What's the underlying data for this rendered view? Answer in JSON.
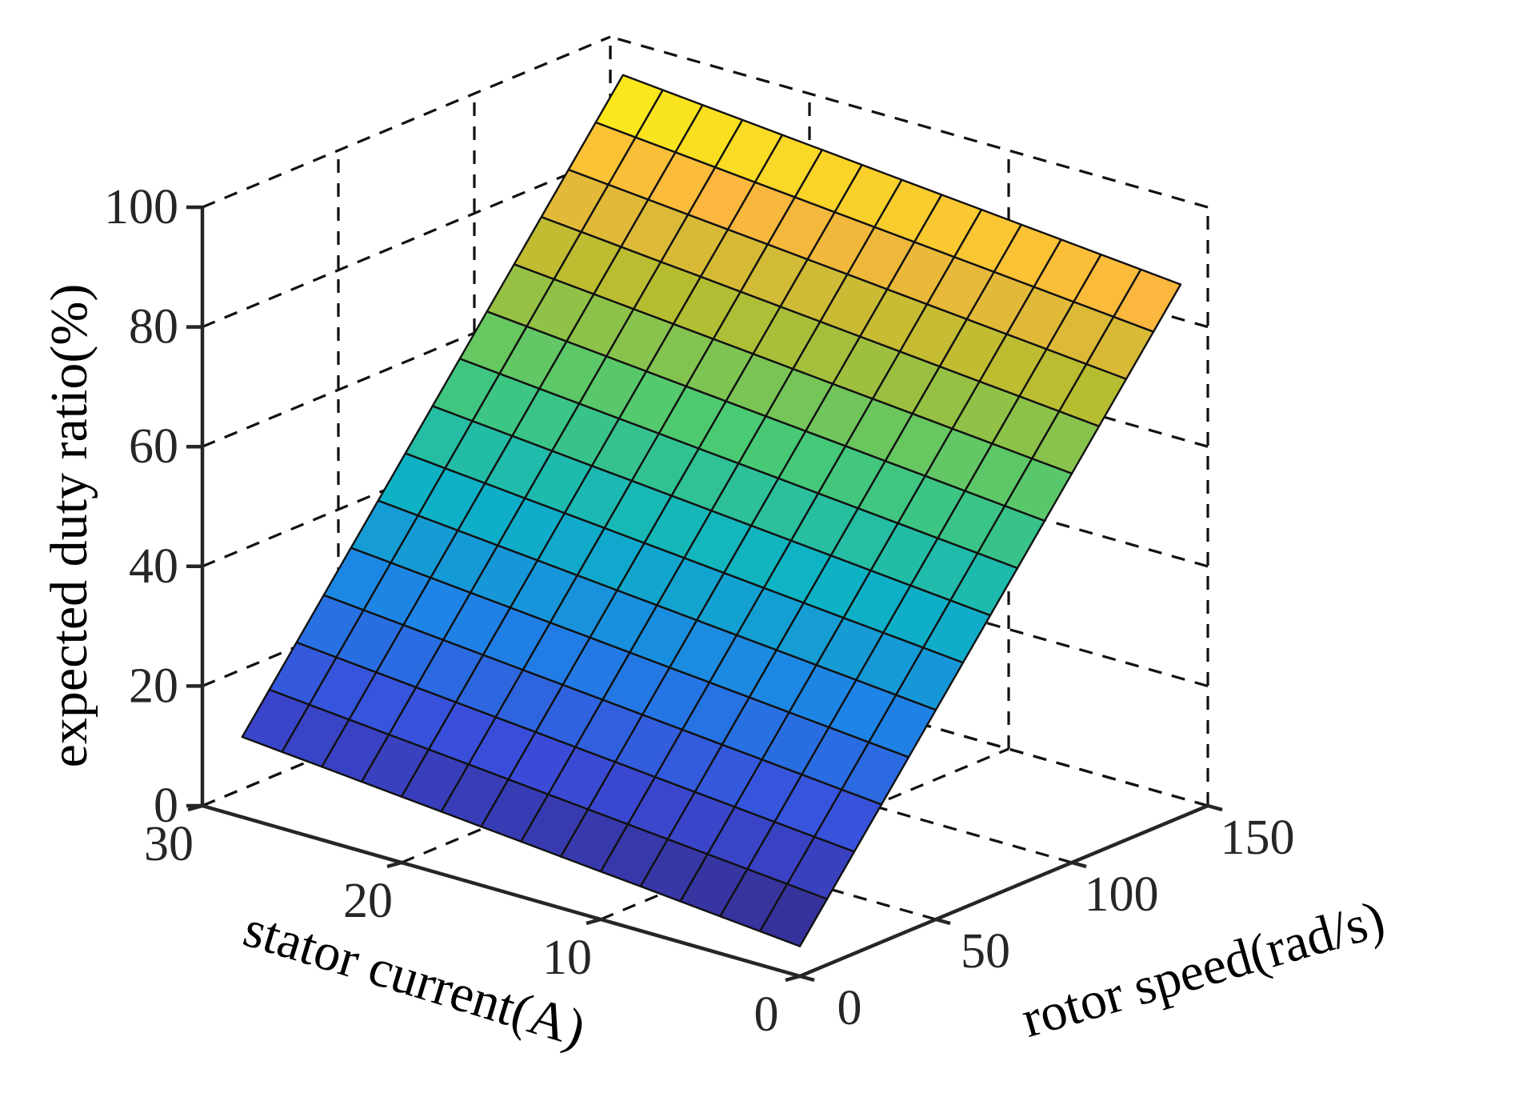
{
  "chart_data": {
    "type": "surface3d",
    "title": "",
    "xlabel": "rotor speed(rad/s)",
    "ylabel": "stator current(A)",
    "zlabel": "expected duty ratio(%)",
    "x_range": [
      0,
      150
    ],
    "y_range": [
      0,
      30
    ],
    "z_range": [
      0,
      100
    ],
    "x_ticks": [
      "0",
      "50",
      "100",
      "150"
    ],
    "y_ticks": [
      "0",
      "10",
      "20",
      "30"
    ],
    "z_ticks": [
      "0",
      "20",
      "40",
      "60",
      "80",
      "100"
    ],
    "grid": true,
    "colormap": "parula",
    "surface": {
      "description": "planar surface z = 5 + 0.6*x + 0.3*y",
      "x": [
        0,
        10,
        20,
        30,
        40,
        50,
        60,
        70,
        80,
        90,
        100,
        110,
        120,
        130,
        140
      ],
      "y": [
        0,
        2,
        4,
        6,
        8,
        10,
        12,
        14,
        16,
        18,
        20,
        22,
        24,
        26,
        28
      ],
      "z": [
        [
          5,
          11,
          17,
          23,
          29,
          35,
          41,
          47,
          53,
          59,
          65,
          71,
          77,
          83,
          89
        ],
        [
          5.6,
          11.6,
          17.6,
          23.6,
          29.6,
          35.6,
          41.6,
          47.6,
          53.6,
          59.6,
          65.6,
          71.6,
          77.6,
          83.6,
          89.6
        ],
        [
          6.2,
          12.2,
          18.2,
          24.2,
          30.2,
          36.2,
          42.2,
          48.2,
          54.2,
          60.2,
          66.2,
          72.2,
          78.2,
          84.2,
          90.2
        ],
        [
          6.8,
          12.8,
          18.8,
          24.8,
          30.8,
          36.8,
          42.8,
          48.8,
          54.8,
          60.8,
          66.8,
          72.8,
          78.8,
          84.8,
          90.8
        ],
        [
          7.4,
          13.4,
          19.4,
          25.4,
          31.4,
          37.4,
          43.4,
          49.4,
          55.4,
          61.4,
          67.4,
          73.4,
          79.4,
          85.4,
          91.4
        ],
        [
          8,
          14,
          20,
          26,
          32,
          38,
          44,
          50,
          56,
          62,
          68,
          74,
          80,
          86,
          92
        ],
        [
          8.6,
          14.6,
          20.6,
          26.6,
          32.6,
          38.6,
          44.6,
          50.6,
          56.6,
          62.6,
          68.6,
          74.6,
          80.6,
          86.6,
          92.6
        ],
        [
          9.2,
          15.2,
          21.2,
          27.2,
          33.2,
          39.2,
          45.2,
          51.2,
          57.2,
          63.2,
          69.2,
          75.2,
          81.2,
          87.2,
          93.2
        ],
        [
          9.8,
          15.8,
          21.8,
          27.8,
          33.8,
          39.8,
          45.8,
          51.8,
          57.8,
          63.8,
          69.8,
          75.8,
          81.8,
          87.8,
          93.8
        ],
        [
          10.4,
          16.4,
          22.4,
          28.4,
          34.4,
          40.4,
          46.4,
          52.4,
          58.4,
          64.4,
          70.4,
          76.4,
          82.4,
          88.4,
          94.4
        ],
        [
          11,
          17,
          23,
          29,
          35,
          41,
          47,
          53,
          59,
          65,
          71,
          77,
          83,
          89,
          95
        ],
        [
          11.6,
          17.6,
          23.6,
          29.6,
          35.6,
          41.6,
          47.6,
          53.6,
          59.6,
          65.6,
          71.6,
          77.6,
          83.6,
          89.6,
          95.6
        ],
        [
          12.2,
          18.2,
          24.2,
          30.2,
          36.2,
          42.2,
          48.2,
          54.2,
          60.2,
          66.2,
          72.2,
          78.2,
          84.2,
          90.2,
          96.2
        ],
        [
          12.8,
          18.8,
          24.8,
          30.8,
          36.8,
          42.8,
          48.8,
          54.8,
          60.8,
          66.8,
          72.8,
          78.8,
          84.8,
          90.8,
          96.8
        ],
        [
          13.4,
          19.4,
          25.4,
          31.4,
          37.4,
          43.4,
          49.4,
          55.4,
          61.4,
          67.4,
          73.4,
          79.4,
          85.4,
          91.4,
          97.4
        ]
      ]
    }
  }
}
